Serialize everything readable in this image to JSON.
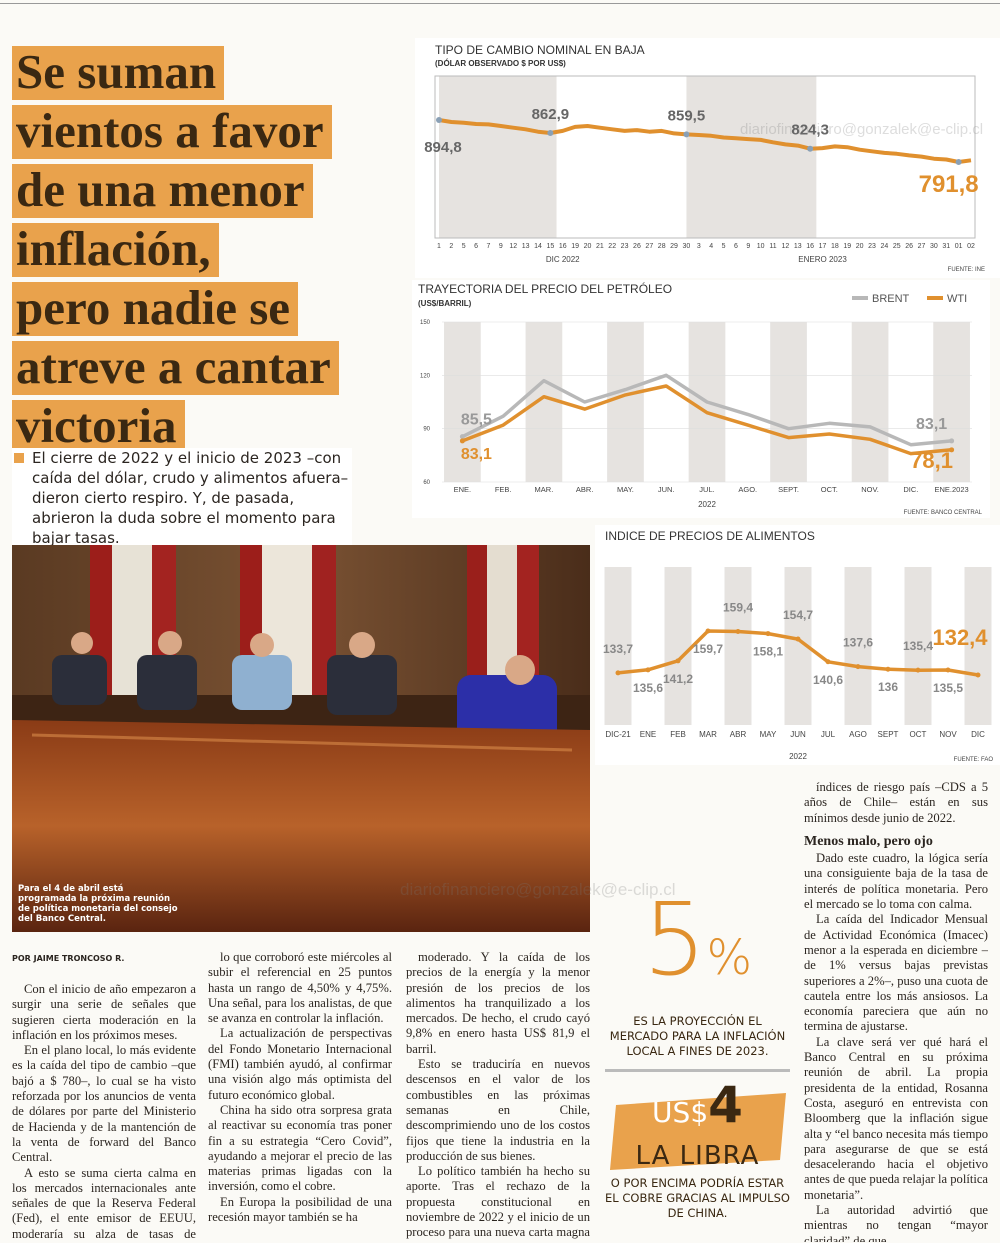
{
  "headline": {
    "lines": [
      "Se suman",
      "vientos a favor",
      "de una menor",
      "inflación,",
      "pero nadie se",
      "atreve a cantar",
      "victoria"
    ]
  },
  "lead": "El cierre de 2022 y el inicio de 2023 –con caída del dólar, crudo y alimentos afuera– dieron cierto respiro. Y, de pasada, abrieron la duda sobre el momento para bajar tasas.",
  "photo_caption": "Para el 4 de abril está programada la próxima reunión de política monetaria del consejo del Banco Central.",
  "watermark": "diariofinanciero@gonzalek@e-clip.cl",
  "byline": "POR JAIME TRONCOSO R.",
  "columns": [
    {
      "paragraphs": [
        "Con el inicio de año empezaron a surgir una serie de señales que sugieren cierta moderación en la inflación en los próximos meses.",
        "En el plano local, lo más evidente es la caída del tipo de cambio –que bajó a $ 780–, lo cual se ha visto reforzada por los anuncios de venta de dólares por parte del Ministerio de Hacienda y de la mantención de la venta de forward del Banco Central.",
        "A esto se suma cierta calma en los mercados internacionales ante señales de que la Reserva Federal (Fed), el ente emisor de EEUU, moderaría su alza de tasas de interés,"
      ]
    },
    {
      "paragraphs": [
        "lo que corroboró este miércoles al subir el referencial en 25 puntos hasta un rango de 4,50% y 4,75%. Una señal, para los analistas, de que se avanza en controlar la inflación.",
        "La actualización de perspectivas del Fondo Monetario Internacional (FMI) también ayudó, al confirmar una visión algo más optimista del futuro económico global.",
        "China ha sido otra sorpresa grata al reactivar su economía tras poner fin a su estrategia “Cero Covid”, ayudando a mejorar el precio de las materias primas ligadas con la inversión, como el cobre.",
        "En Europa la posibilidad de una recesión mayor también se ha"
      ]
    },
    {
      "paragraphs": [
        "moderado. Y la caída de los precios de la energía y la menor presión de los precios de los alimentos ha tranquilizado a los mercados. De hecho, el crudo cayó 9,8% en enero hasta US$ 81,9 el barril.",
        "Esto se traduciría en nuevos descensos en el valor de los combustibles en las próximas semanas en Chile, descomprimiendo uno de los costos fijos que tiene la industria en la producción de sus bienes.",
        "Lo político también ha hecho su aporte. Tras el rechazo de la propuesta constitucional en noviembre de 2022 y el inicio de un proceso para una nueva carta magna con menos carácter refundacional , los"
      ]
    },
    {
      "paragraphs": [
        "índices de riesgo país –CDS a 5 años de Chile– están en sus mínimos desde junio de 2022."
      ],
      "subhead": "Menos malo, pero ojo",
      "paragraphs_after": [
        "Dado este cuadro, la lógica sería una consiguiente baja de la tasa de interés de política monetaria. Pero el mercado se lo toma con calma.",
        "La caída del Indicador Mensual de Actividad Económica (Imacec) menor a la esperada en diciembre –de 1% versus bajas previstas superiores a 2%–, puso una cuota de cautela entre los más ansiosos. La economía pareciera que aún no termina de ajustarse.",
        "La clave será ver qué hará el Banco Central en su próxima reunión de abril. La propia presidenta de la entidad, Rosanna Costa, aseguró en entrevista con Bloomberg que la inflación sigue alta y “el banco necesita más tiempo para asegurarse de que se está desacelerando hacia el objetivo antes de que pueda relajar la política monetaria”.",
        "La autoridad advirtió que mientras no tengan “mayor claridad” de que"
      ]
    }
  ],
  "callouts": [
    {
      "figure": "5",
      "unit": "%",
      "text": "ES LA PROYECCIÓN EL MERCADO PARA LA INFLACIÓN LOCAL A FINES DE 2023."
    },
    {
      "prefix": "US$",
      "figure": "4",
      "line": "LA LIBRA",
      "text": "O POR ENCIMA PODRÍA ESTAR EL COBRE GRACIAS AL IMPULSO DE CHINA."
    }
  ],
  "chart_data": [
    {
      "type": "line",
      "title": "TIPO DE CAMBIO NOMINAL EN BAJA",
      "subtitle": "(DÓLAR OBSERVADO $ POR US$)",
      "categories": [
        "1",
        "2",
        "5",
        "6",
        "7",
        "9",
        "12",
        "13",
        "14",
        "15",
        "16",
        "19",
        "20",
        "21",
        "22",
        "23",
        "26",
        "27",
        "28",
        "29",
        "30",
        "3",
        "4",
        "5",
        "6",
        "9",
        "10",
        "11",
        "12",
        "13",
        "16",
        "17",
        "18",
        "19",
        "20",
        "23",
        "24",
        "25",
        "26",
        "27",
        "30",
        "31",
        "01",
        "02"
      ],
      "periods": [
        "DIC 2022",
        "ENERO 2023"
      ],
      "values": [
        894.8,
        890,
        888,
        885,
        884,
        880,
        876,
        872,
        866,
        862.9,
        868,
        878,
        880,
        876,
        872,
        868,
        870,
        866,
        868,
        862,
        859.5,
        858,
        856,
        852,
        850,
        848,
        846,
        840,
        835,
        832,
        824.3,
        826,
        830,
        828,
        822,
        818,
        814,
        812,
        808,
        805,
        800,
        798,
        791.8,
        796
      ],
      "value_labels": [
        "894,8",
        null,
        null,
        null,
        null,
        null,
        null,
        null,
        null,
        "862,9",
        null,
        null,
        null,
        null,
        null,
        null,
        null,
        null,
        null,
        null,
        "859,5",
        null,
        null,
        null,
        null,
        null,
        null,
        null,
        null,
        null,
        "824,3",
        null,
        null,
        null,
        null,
        null,
        null,
        null,
        null,
        null,
        null,
        null,
        "791,8",
        null
      ],
      "color": "#e0902e",
      "source": "FUENTE: INE"
    },
    {
      "type": "line",
      "title": "TRAYECTORIA DEL PRECIO DEL PETRÓLEO",
      "subtitle": "(US$/BARRIL)",
      "categories": [
        "ENE.",
        "FEB.",
        "MAR.",
        "ABR.",
        "MAY.",
        "JUN.",
        "JUL.",
        "AGO.",
        "SEPT.",
        "OCT.",
        "NOV.",
        "DIC.",
        "ENE.2023"
      ],
      "xlabel": "2022",
      "series": [
        {
          "name": "BRENT",
          "color": "#b8b8b8",
          "values": [
            85.5,
            97,
            117,
            105,
            112,
            120,
            105,
            98,
            90,
            93,
            91,
            81,
            83.1
          ],
          "value_labels": [
            "85,5",
            null,
            null,
            null,
            null,
            null,
            null,
            null,
            null,
            null,
            null,
            null,
            "83,1"
          ]
        },
        {
          "name": "WTI",
          "color": "#e0902e",
          "values": [
            83.1,
            92,
            108,
            101,
            109,
            114,
            99,
            92,
            85,
            87,
            84,
            76,
            78.1
          ],
          "value_labels": [
            "83,1",
            null,
            null,
            null,
            null,
            null,
            null,
            null,
            null,
            null,
            null,
            null,
            "78,1"
          ]
        }
      ],
      "ylim": [
        60,
        150
      ],
      "yticks": [
        60,
        90,
        120,
        150
      ],
      "legend": "top-right",
      "source": "FUENTE: BANCO CENTRAL"
    },
    {
      "type": "line",
      "title": "INDICE DE PRECIOS DE ALIMENTOS",
      "categories": [
        "DIC-21",
        "ENE",
        "FEB",
        "MAR",
        "ABR",
        "MAY",
        "JUN",
        "JUL",
        "AGO",
        "SEPT",
        "OCT",
        "NOV",
        "DIC"
      ],
      "xlabel": "2022",
      "values": [
        133.7,
        135.6,
        141.2,
        159.7,
        159.4,
        158.1,
        154.7,
        140.6,
        137.6,
        136,
        135.4,
        135.5,
        132.4
      ],
      "value_labels": [
        "133,7",
        "135,6",
        "141,2",
        "159,7",
        "159,4",
        "158,1",
        "154,7",
        "140,6",
        "137,6",
        "136",
        "135,4",
        "135,5",
        "132,4"
      ],
      "color": "#e0902e",
      "source": "FUENTE: FAO"
    }
  ]
}
